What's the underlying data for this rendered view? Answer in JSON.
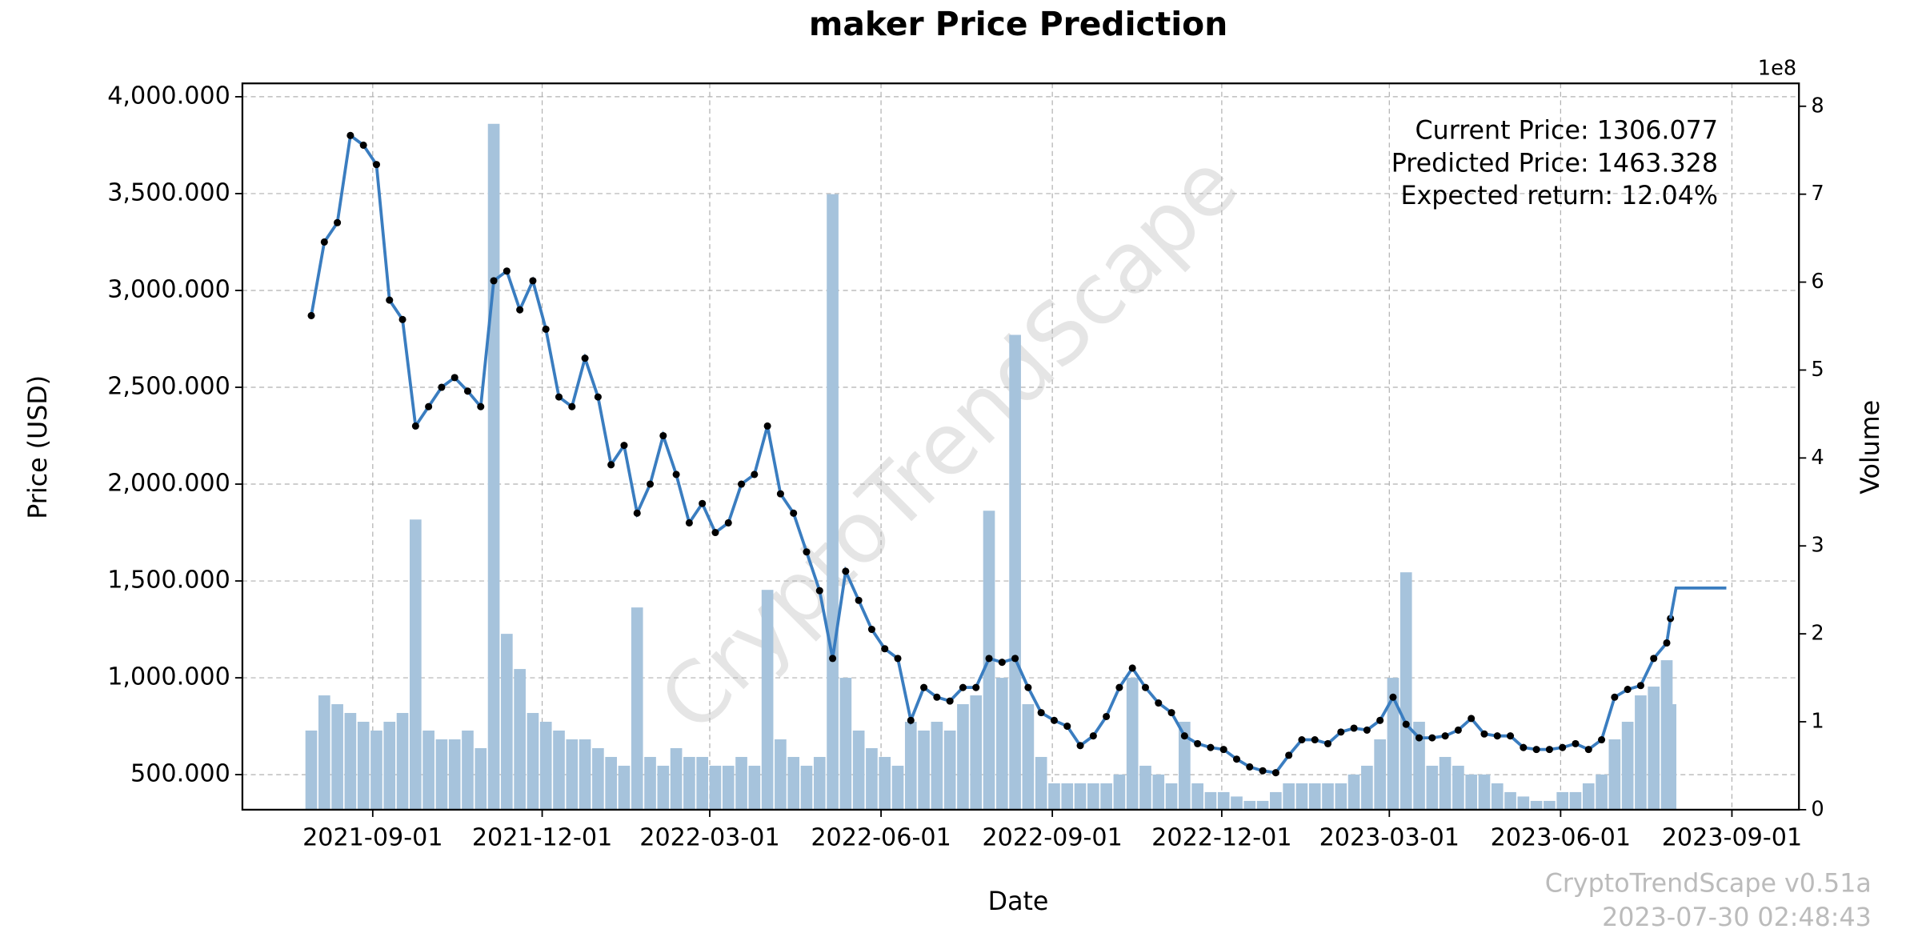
{
  "chart_data": {
    "type": "line",
    "title": "maker Price Prediction",
    "x_label": "Date",
    "y_label": "Price (USD)",
    "y2_label": "Volume",
    "y2_offset_label": "1e8",
    "annotations": [
      "Current Price: 1306.077",
      "Predicted Price: 1463.328",
      "Expected return: 12.04%"
    ],
    "watermark": "CryptoTrendScape",
    "footer": [
      "CryptoTrendScape v0.51a",
      "2023-07-30 02:48:43"
    ],
    "xlim": [
      "2021-06-23",
      "2023-10-07"
    ],
    "xticks": [
      "2021-09-01",
      "2021-12-01",
      "2022-03-01",
      "2022-06-01",
      "2022-09-01",
      "2022-12-01",
      "2023-03-01",
      "2023-06-01",
      "2023-09-01"
    ],
    "ylim": [
      319,
      4069
    ],
    "yticks": [
      {
        "value": 500,
        "label": "500.000"
      },
      {
        "value": 1000,
        "label": "1,000.000"
      },
      {
        "value": 1500,
        "label": "1,500.000"
      },
      {
        "value": 2000,
        "label": "2,000.000"
      },
      {
        "value": 2500,
        "label": "2,500.000"
      },
      {
        "value": 3000,
        "label": "3,000.000"
      },
      {
        "value": 3500,
        "label": "3,500.000"
      },
      {
        "value": 4000,
        "label": "4,000.000"
      }
    ],
    "y2lim": [
      0,
      8.26
    ],
    "y2ticks": [
      0,
      1,
      2,
      3,
      4,
      5,
      6,
      7,
      8
    ],
    "grid": true,
    "x": [
      "2021-07-30",
      "2021-08-06",
      "2021-08-13",
      "2021-08-20",
      "2021-08-27",
      "2021-09-03",
      "2021-09-10",
      "2021-09-17",
      "2021-09-24",
      "2021-10-01",
      "2021-10-08",
      "2021-10-15",
      "2021-10-22",
      "2021-10-29",
      "2021-11-05",
      "2021-11-12",
      "2021-11-19",
      "2021-11-26",
      "2021-12-03",
      "2021-12-10",
      "2021-12-17",
      "2021-12-24",
      "2021-12-31",
      "2022-01-07",
      "2022-01-14",
      "2022-01-21",
      "2022-01-28",
      "2022-02-04",
      "2022-02-11",
      "2022-02-18",
      "2022-02-25",
      "2022-03-04",
      "2022-03-11",
      "2022-03-18",
      "2022-03-25",
      "2022-04-01",
      "2022-04-08",
      "2022-04-15",
      "2022-04-22",
      "2022-04-29",
      "2022-05-06",
      "2022-05-13",
      "2022-05-20",
      "2022-05-27",
      "2022-06-03",
      "2022-06-10",
      "2022-06-17",
      "2022-06-24",
      "2022-07-01",
      "2022-07-08",
      "2022-07-15",
      "2022-07-22",
      "2022-07-29",
      "2022-08-05",
      "2022-08-12",
      "2022-08-19",
      "2022-08-26",
      "2022-09-02",
      "2022-09-09",
      "2022-09-16",
      "2022-09-23",
      "2022-09-30",
      "2022-10-07",
      "2022-10-14",
      "2022-10-21",
      "2022-10-28",
      "2022-11-04",
      "2022-11-11",
      "2022-11-18",
      "2022-11-25",
      "2022-12-02",
      "2022-12-09",
      "2022-12-16",
      "2022-12-23",
      "2022-12-30",
      "2023-01-06",
      "2023-01-13",
      "2023-01-20",
      "2023-01-27",
      "2023-02-03",
      "2023-02-10",
      "2023-02-17",
      "2023-02-24",
      "2023-03-03",
      "2023-03-10",
      "2023-03-17",
      "2023-03-24",
      "2023-03-31",
      "2023-04-07",
      "2023-04-14",
      "2023-04-21",
      "2023-04-28",
      "2023-05-05",
      "2023-05-12",
      "2023-05-19",
      "2023-05-26",
      "2023-06-02",
      "2023-06-09",
      "2023-06-16",
      "2023-06-23",
      "2023-06-30",
      "2023-07-07",
      "2023-07-14",
      "2023-07-21",
      "2023-07-28",
      "2023-07-30"
    ],
    "series": [
      {
        "color": "#3a7dc0",
        "marker_color": "#000000",
        "values": [
          2870,
          3250,
          3350,
          3800,
          3750,
          3650,
          2950,
          2850,
          2300,
          2400,
          2500,
          2550,
          2480,
          2400,
          3050,
          3100,
          2900,
          3050,
          2800,
          2450,
          2400,
          2650,
          2450,
          2100,
          2200,
          1850,
          2000,
          2250,
          2050,
          1800,
          1900,
          1750,
          1800,
          2000,
          2050,
          2300,
          1950,
          1850,
          1650,
          1450,
          1100,
          1550,
          1400,
          1250,
          1150,
          1100,
          780,
          950,
          900,
          880,
          950,
          950,
          1100,
          1080,
          1100,
          950,
          820,
          780,
          750,
          650,
          700,
          800,
          950,
          1050,
          950,
          870,
          820,
          700,
          660,
          640,
          630,
          580,
          540,
          520,
          510,
          600,
          680,
          680,
          660,
          720,
          740,
          730,
          780,
          900,
          760,
          690,
          690,
          700,
          730,
          790,
          710,
          700,
          700,
          640,
          630,
          630,
          640,
          660,
          630,
          680,
          900,
          940,
          960,
          1100,
          1180,
          1306.077
        ]
      },
      {
        "color": "#3a7dc0",
        "x": [
          "2023-07-30",
          "2023-08-02",
          "2023-08-29"
        ],
        "values": [
          1306.077,
          1463.328,
          1463.328
        ]
      },
      {
        "color": "#a6c3dc",
        "axis": "y2",
        "values": [
          0.9,
          1.3,
          1.2,
          1.1,
          1.0,
          0.9,
          1.0,
          1.1,
          3.3,
          0.9,
          0.8,
          0.8,
          0.9,
          0.7,
          7.8,
          2.0,
          1.6,
          1.1,
          1.0,
          0.9,
          0.8,
          0.8,
          0.7,
          0.6,
          0.5,
          2.3,
          0.6,
          0.5,
          0.7,
          0.6,
          0.6,
          0.5,
          0.5,
          0.6,
          0.5,
          2.5,
          0.8,
          0.6,
          0.5,
          0.6,
          7.0,
          1.5,
          0.9,
          0.7,
          0.6,
          0.5,
          1.0,
          0.9,
          1.0,
          0.9,
          1.2,
          1.3,
          3.4,
          1.5,
          5.4,
          1.2,
          0.6,
          0.3,
          0.3,
          0.3,
          0.3,
          0.3,
          0.4,
          1.5,
          0.5,
          0.4,
          0.3,
          1.0,
          0.3,
          0.2,
          0.2,
          0.15,
          0.1,
          0.1,
          0.2,
          0.3,
          0.3,
          0.3,
          0.3,
          0.3,
          0.4,
          0.5,
          0.8,
          1.5,
          2.7,
          1.0,
          0.5,
          0.6,
          0.5,
          0.4,
          0.4,
          0.3,
          0.2,
          0.15,
          0.1,
          0.1,
          0.2,
          0.2,
          0.3,
          0.4,
          0.8,
          1.0,
          1.3,
          1.4,
          1.7,
          1.2
        ]
      }
    ]
  }
}
